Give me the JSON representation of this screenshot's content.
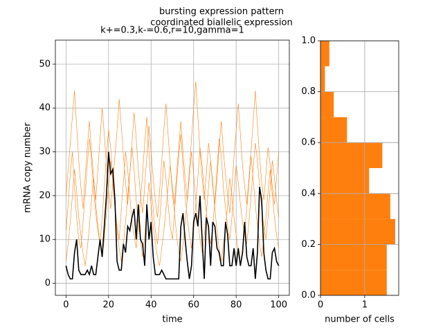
{
  "title": "bursting expression pattern",
  "subtitle": "coordinated biallelic expression",
  "chart_data": [
    {
      "type": "line",
      "title": "k+=0.3,k-=0.6,r=10,gamma=1",
      "xlabel": "time",
      "ylabel": "mRNA copy number",
      "x": [
        0,
        1,
        2,
        3,
        4,
        5,
        6,
        7,
        8,
        9,
        10,
        11,
        12,
        13,
        14,
        15,
        16,
        17,
        18,
        19,
        20,
        21,
        22,
        23,
        24,
        25,
        26,
        27,
        28,
        29,
        30,
        31,
        32,
        33,
        34,
        35,
        36,
        37,
        38,
        39,
        40,
        41,
        42,
        43,
        44,
        45,
        46,
        47,
        48,
        49,
        50,
        51,
        52,
        53,
        54,
        55,
        56,
        57,
        58,
        59,
        60,
        61,
        62,
        63,
        64,
        65,
        66,
        67,
        68,
        69,
        70,
        71,
        72,
        73,
        74,
        75,
        76,
        77,
        78,
        79,
        80,
        81,
        82,
        83,
        84,
        85,
        86,
        87,
        88,
        89,
        90,
        91,
        92,
        93,
        94,
        95,
        96,
        97,
        98,
        99,
        100
      ],
      "series": [
        {
          "color": "#ff7f0e",
          "values": [
            12,
            18,
            25,
            30,
            22,
            15,
            10,
            8,
            14,
            20,
            27,
            33,
            28,
            21,
            16,
            12,
            9,
            15,
            22,
            29,
            35,
            31,
            24,
            18,
            13,
            10,
            17,
            23,
            30,
            26,
            20,
            14,
            11,
            8,
            13,
            19,
            25,
            32,
            38,
            30,
            22,
            17,
            12,
            9,
            14,
            21,
            28,
            24,
            18,
            13,
            10,
            16,
            23,
            29,
            34,
            27,
            20,
            15,
            11,
            8,
            12,
            18,
            24,
            31,
            27,
            21,
            16,
            12,
            9,
            13,
            19,
            26,
            33,
            29,
            22,
            17,
            13,
            10,
            15,
            21,
            27,
            23,
            18,
            14,
            11,
            9,
            14,
            20,
            26,
            32,
            28,
            22,
            17,
            13,
            10,
            15,
            22,
            28,
            24,
            19,
            15
          ]
        },
        {
          "color": "#ff7f0e",
          "values": [
            5,
            9,
            14,
            20,
            26,
            21,
            15,
            11,
            7,
            4,
            8,
            13,
            19,
            24,
            18,
            13,
            9,
            6,
            10,
            16,
            22,
            28,
            23,
            17,
            12,
            8,
            5,
            9,
            14,
            20,
            25,
            31,
            26,
            19,
            14,
            10,
            6,
            11,
            17,
            23,
            18,
            13,
            9,
            6,
            4,
            8,
            12,
            17,
            22,
            27,
            21,
            16,
            11,
            7,
            5,
            9,
            14,
            19,
            24,
            30,
            25,
            19,
            14,
            10,
            7,
            11,
            16,
            22,
            28,
            23,
            17,
            12,
            8,
            5,
            9,
            13,
            18,
            24,
            20,
            15,
            11,
            7,
            4,
            8,
            12,
            17,
            23,
            29,
            24,
            18,
            13,
            9,
            6,
            10,
            15,
            21,
            26,
            20,
            15,
            11,
            8
          ]
        },
        {
          "color": "#ff7f0e",
          "values": [
            20,
            26,
            32,
            38,
            44,
            36,
            28,
            22,
            17,
            24,
            31,
            37,
            30,
            24,
            19,
            26,
            33,
            40,
            34,
            27,
            21,
            17,
            23,
            29,
            35,
            42,
            36,
            29,
            23,
            18,
            25,
            32,
            39,
            33,
            26,
            20,
            16,
            22,
            29,
            36,
            30,
            24,
            19,
            15,
            21,
            28,
            35,
            41,
            34,
            27,
            22,
            18,
            25,
            31,
            37,
            30,
            24,
            19,
            26,
            33,
            40,
            46,
            38,
            30,
            24,
            19,
            25,
            32,
            28,
            22,
            18,
            24,
            31,
            37,
            30,
            25,
            20,
            16,
            22,
            29,
            35,
            41,
            34,
            27,
            22,
            18,
            24,
            30,
            37,
            44,
            36,
            29,
            23,
            19,
            25,
            31,
            27,
            22,
            18,
            24,
            30
          ]
        },
        {
          "color": "#000000",
          "values": [
            4,
            2,
            1,
            1,
            7,
            10,
            3,
            2,
            2,
            2,
            3,
            2,
            4,
            2,
            2,
            6,
            10,
            6,
            13,
            20,
            30,
            25,
            26,
            19,
            5,
            3,
            3,
            9,
            7,
            13,
            12,
            15,
            17,
            10,
            18,
            10,
            9,
            4,
            18,
            10,
            14,
            6,
            2,
            2,
            2,
            3,
            2,
            1,
            1,
            1,
            1,
            1,
            1,
            1,
            13,
            16,
            10,
            5,
            1,
            4,
            14,
            16,
            13,
            20,
            10,
            1,
            15,
            13,
            4,
            14,
            13,
            8,
            7,
            4,
            4,
            14,
            11,
            4,
            4,
            8,
            4,
            8,
            4,
            7,
            14,
            6,
            4,
            4,
            8,
            1,
            7,
            22,
            19,
            7,
            3,
            1,
            1,
            7,
            8,
            5,
            4
          ]
        }
      ],
      "xlim": [
        -5,
        105
      ],
      "xticks": [
        0,
        20,
        40,
        60,
        80,
        100
      ],
      "ylim": [
        -2.75,
        55.5
      ],
      "yticks": [
        0,
        10,
        20,
        30,
        40,
        50
      ],
      "grid": true
    },
    {
      "type": "histogram",
      "orientation": "horizontal",
      "xlabel": "number of cells",
      "bins": [
        0,
        0.1,
        0.2,
        0.3,
        0.4,
        0.5,
        0.6,
        0.7,
        0.8,
        0.9,
        1.0
      ],
      "values": [
        1.5,
        1.5,
        1.69,
        1.58,
        1.1,
        1.4,
        0.6,
        0.3,
        0.1,
        0.2
      ],
      "color": "#ff7f0e",
      "xlim": [
        0,
        1.77
      ],
      "xticks": [
        0,
        1
      ],
      "ylim": [
        0,
        1.0
      ],
      "yticks": [
        {
          "value": 0,
          "label": "0.0"
        },
        {
          "value": 0.2,
          "label": "0.2"
        },
        {
          "value": 0.4,
          "label": "0.4"
        },
        {
          "value": 0.6,
          "label": "0.6"
        },
        {
          "value": 0.8,
          "label": "0.8"
        },
        {
          "value": 1.0,
          "label": "1.0"
        }
      ],
      "grid": true
    }
  ]
}
